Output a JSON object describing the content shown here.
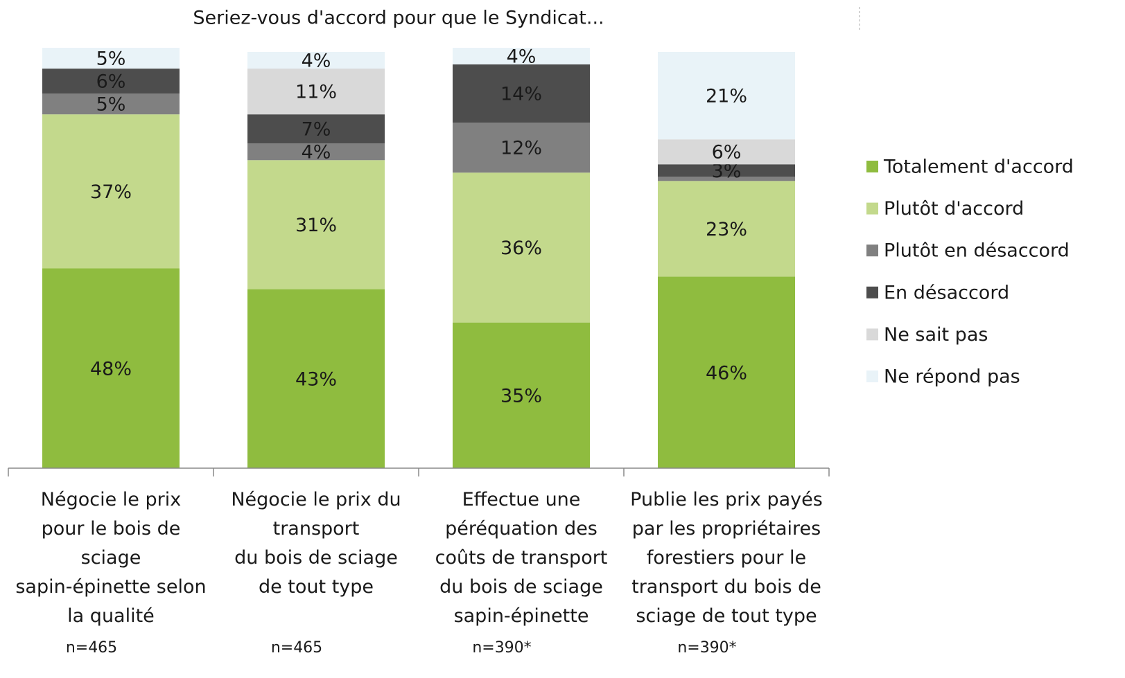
{
  "chart_data": {
    "type": "stacked_bar",
    "title": "Seriez-vous d'accord pour que le Syndicat...",
    "categories": [
      "Négocie le prix\npour le bois de\nsciage\nsapin-épinette selon\nla qualité",
      "Négocie le prix du\ntransport\ndu bois de sciage\nde tout type",
      "Effectue une\npéréquation des\ncoûts de transport\ndu bois de sciage\nsapin-épinette",
      "Publie les prix payés\npar les propriétaires\nforestiers pour le\ntransport du bois de\nsciage de tout type"
    ],
    "category_notes": [
      "n=465",
      "n=465",
      "n=390*",
      "n=390*"
    ],
    "ylim": [
      0,
      100
    ],
    "legend": "right",
    "series": [
      {
        "name": "Totalement d'accord",
        "color": "#8fbc3f",
        "label_color": "#1a1a1a",
        "values": [
          48,
          43,
          35,
          46
        ],
        "value_labels": [
          "48%",
          "43%",
          "35%",
          "46%"
        ]
      },
      {
        "name": "Plutôt d'accord",
        "color": "#c3d98c",
        "label_color": "#1a1a1a",
        "values": [
          37,
          31,
          36,
          23
        ],
        "value_labels": [
          "37%",
          "31%",
          "36%",
          "23%"
        ]
      },
      {
        "name": "Plutôt en désaccord",
        "color": "#808080",
        "label_color": "#ffffff",
        "values": [
          5,
          4,
          12,
          1
        ],
        "value_labels": [
          "5%",
          "4%",
          "12%",
          null
        ]
      },
      {
        "name": "En désaccord",
        "color": "#4d4d4d",
        "label_color": "#ffffff",
        "values": [
          6,
          7,
          14,
          3
        ],
        "value_labels": [
          "6%",
          "7%",
          "14%",
          "3%"
        ]
      },
      {
        "name": "Ne sait pas",
        "color": "#d9d9d9",
        "label_color": "#8c8c8c",
        "values": [
          0,
          11,
          0,
          6
        ],
        "value_labels": [
          null,
          "11%",
          null,
          "6%"
        ]
      },
      {
        "name": "Ne répond pas",
        "color": "#e9f3f8",
        "label_color": "#8c8c8c",
        "values": [
          5,
          4,
          4,
          21
        ],
        "value_labels": [
          "5%",
          "4%",
          "4%",
          "21%"
        ]
      }
    ]
  }
}
